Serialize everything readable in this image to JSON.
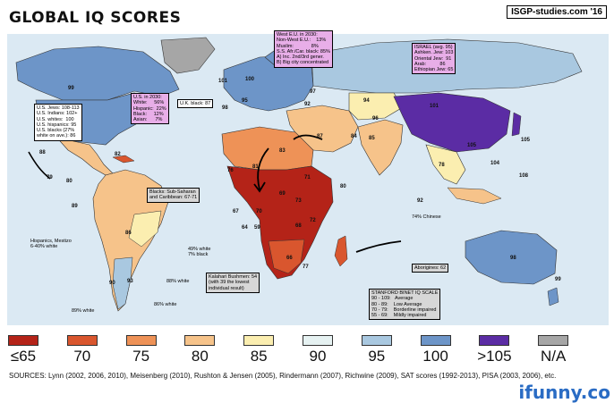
{
  "title": "GLOBAL IQ SCORES",
  "site": "ISGP-studies.com '16",
  "legend": [
    {
      "label": "≤65",
      "color": "#b42318"
    },
    {
      "label": "70",
      "color": "#d9562e"
    },
    {
      "label": "75",
      "color": "#ee9257"
    },
    {
      "label": "80",
      "color": "#f6c38a"
    },
    {
      "label": "85",
      "color": "#fbeeb0"
    },
    {
      "label": "90",
      "color": "#e6f2f2"
    },
    {
      "label": "95",
      "color": "#a9c8e0"
    },
    {
      "label": "100",
      "color": "#6d95c8"
    },
    {
      "label": ">105",
      "color": "#5b2ca4"
    },
    {
      "label": "N/A",
      "color": "#a6a6a6"
    }
  ],
  "sources": "SOURCES: Lynn (2002, 2006, 2010), Meisenberg (2010), Rushton & Jensen (2005), Rindermann (2007), Richwine (2009), SAT scores (1992-2013), PISA (2003, 2006), etc.",
  "watermark": "ifunny.co",
  "boxes": {
    "us_2030": "U.S. in 2030:\nWhite:     56%\nHispanic:  22%\nBlack:     12%\nAsian:      7%",
    "us_groups": "U.S. Jews: 108-113\nU.S. Indians: 102+\nU.S. whites:  100\nU.S. hispanics: 95\nU.S. blacks (27%\nwhite on ave.): 86",
    "uk_black": "U.K. black: 87",
    "west_eu_2030": "West E.U. in 2030:\nNon-West E.U.:    13%\nMuslim:             8%\nS.S. Afr./Car. black: 85%\nA) Inc. 2nd/3rd gener.\nB) Big city concentrated",
    "israel": "ISRAEL (avg. 95)\nAshken. Jew: 103\nOriental Jew:  91\nArab:          86\nEthiopian Jew: 65",
    "blacks_ssa": "Blacks: Sub-Saharan\nand Caribbean: 67-71",
    "kalahari": "Kalahari Bushmen: 54\n(with 39 the lowest\nindividual result)",
    "aborigines": "Aborigines: 62",
    "stanford": "STANFORD BINET IQ SCALE\n90 - 109:   Average\n80 - 89:    Low Average\n70 - 79:    Borderline impaired\n55 - 69:    Mildly impaired"
  },
  "annotations": {
    "hispanics": "Hispanics, Mestizo\n6-40% white",
    "white49": "49% white\n7% black",
    "white88": "88% white",
    "white86": "86% white",
    "white89": "89% white",
    "chinese74": "74% Chinese"
  },
  "numbers": [
    {
      "id": "n99",
      "text": "99"
    },
    {
      "id": "n101",
      "text": "101"
    },
    {
      "id": "n100a",
      "text": "100"
    },
    {
      "id": "n98",
      "text": "98"
    },
    {
      "id": "n97",
      "text": "97"
    },
    {
      "id": "n92",
      "text": "92"
    },
    {
      "id": "n94",
      "text": "94"
    },
    {
      "id": "n101b",
      "text": "101"
    },
    {
      "id": "n84",
      "text": "84"
    },
    {
      "id": "n87",
      "text": "87"
    },
    {
      "id": "n85",
      "text": "85"
    },
    {
      "id": "n83",
      "text": "83"
    },
    {
      "id": "n105",
      "text": "105"
    },
    {
      "id": "n105b",
      "text": "105"
    },
    {
      "id": "n104",
      "text": "104"
    },
    {
      "id": "n108",
      "text": "108"
    },
    {
      "id": "n76",
      "text": "76"
    },
    {
      "id": "n81",
      "text": "81"
    },
    {
      "id": "n71",
      "text": "71"
    },
    {
      "id": "n73",
      "text": "73"
    },
    {
      "id": "n69",
      "text": "69"
    },
    {
      "id": "n68",
      "text": "68"
    },
    {
      "id": "n70",
      "text": "70"
    },
    {
      "id": "n67",
      "text": "67"
    },
    {
      "id": "n88",
      "text": "88"
    },
    {
      "id": "n82",
      "text": "82"
    },
    {
      "id": "n80",
      "text": "80"
    },
    {
      "id": "n79",
      "text": "79"
    },
    {
      "id": "n86",
      "text": "86"
    },
    {
      "id": "n89",
      "text": "89"
    },
    {
      "id": "n90",
      "text": "90"
    },
    {
      "id": "n93",
      "text": "93"
    },
    {
      "id": "n64",
      "text": "64"
    },
    {
      "id": "n59",
      "text": "59"
    },
    {
      "id": "n72",
      "text": "72"
    },
    {
      "id": "n77",
      "text": "77"
    },
    {
      "id": "n66",
      "text": "66"
    },
    {
      "id": "n78",
      "text": "78"
    },
    {
      "id": "n96",
      "text": "96"
    },
    {
      "id": "n99b",
      "text": "99"
    },
    {
      "id": "n98b",
      "text": "98"
    },
    {
      "id": "n95",
      "text": "95"
    },
    {
      "id": "n80b",
      "text": "80"
    },
    {
      "id": "n92b",
      "text": "92"
    }
  ]
}
